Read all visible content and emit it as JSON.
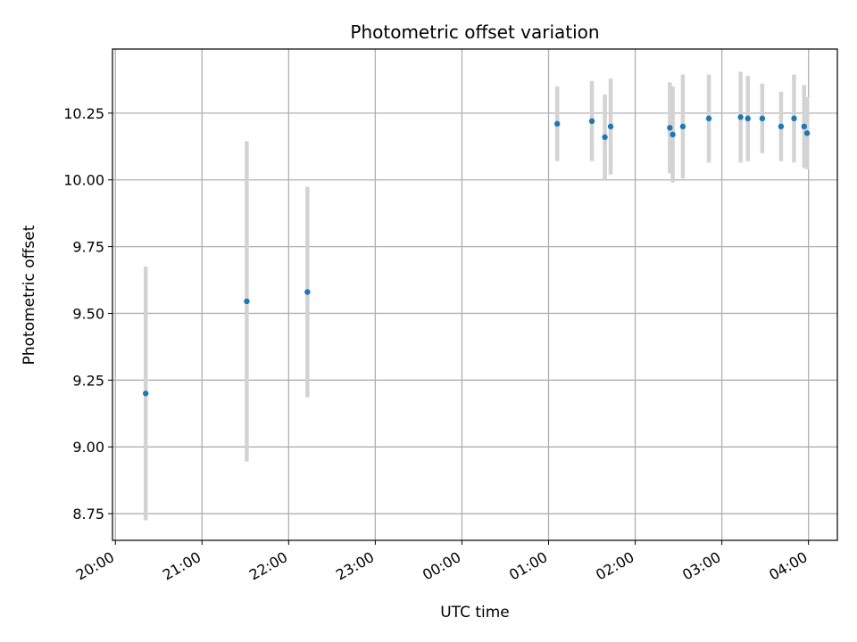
{
  "chart_data": {
    "type": "scatter",
    "title": "Photometric offset variation",
    "xlabel": "UTC time",
    "ylabel": "Photometric offset",
    "grid": true,
    "x_tick_labels": [
      "20:00",
      "21:00",
      "22:00",
      "23:00",
      "00:00",
      "01:00",
      "02:00",
      "03:00",
      "04:00"
    ],
    "y_tick_labels": [
      "8.75",
      "9.00",
      "9.25",
      "9.50",
      "9.75",
      "10.00",
      "10.25"
    ],
    "y_ticks": [
      8.75,
      9.0,
      9.25,
      9.5,
      9.75,
      10.0,
      10.25
    ],
    "xlim": [
      "20:00",
      "04:20"
    ],
    "ylim": [
      8.65,
      10.49
    ],
    "series": [
      {
        "color": "#1f77b4",
        "errorbar_color": "#d3d3d3",
        "points": [
          {
            "x": "20:21",
            "y": 9.2,
            "yerr": 0.475
          },
          {
            "x": "21:31",
            "y": 9.545,
            "yerr": 0.6
          },
          {
            "x": "22:13",
            "y": 9.58,
            "yerr": 0.395
          },
          {
            "x": "01:06",
            "y": 10.21,
            "yerr": 0.14
          },
          {
            "x": "01:30",
            "y": 10.22,
            "yerr": 0.15
          },
          {
            "x": "01:39",
            "y": 10.16,
            "yerr": 0.16
          },
          {
            "x": "01:43",
            "y": 10.2,
            "yerr": 0.18
          },
          {
            "x": "02:24",
            "y": 10.195,
            "yerr": 0.17
          },
          {
            "x": "02:26",
            "y": 10.17,
            "yerr": 0.18
          },
          {
            "x": "02:33",
            "y": 10.2,
            "yerr": 0.195
          },
          {
            "x": "02:51",
            "y": 10.23,
            "yerr": 0.165
          },
          {
            "x": "03:13",
            "y": 10.235,
            "yerr": 0.17
          },
          {
            "x": "03:18",
            "y": 10.23,
            "yerr": 0.16
          },
          {
            "x": "03:28",
            "y": 10.23,
            "yerr": 0.13
          },
          {
            "x": "03:41",
            "y": 10.2,
            "yerr": 0.13
          },
          {
            "x": "03:50",
            "y": 10.23,
            "yerr": 0.165
          },
          {
            "x": "03:57",
            "y": 10.2,
            "yerr": 0.155
          },
          {
            "x": "03:59",
            "y": 10.175,
            "yerr": 0.135
          }
        ]
      }
    ]
  }
}
